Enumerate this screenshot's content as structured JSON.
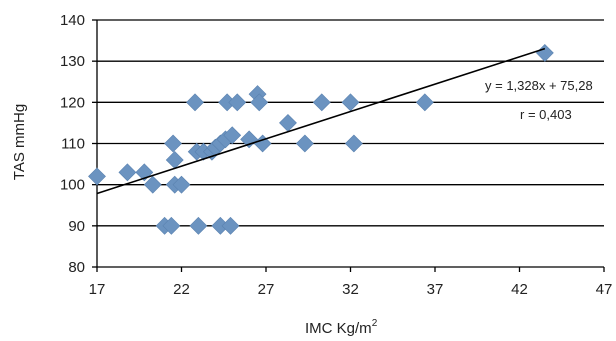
{
  "chart_data": {
    "type": "scatter",
    "title": "",
    "xlabel": "IMC Kg/m",
    "xlabel_superscript": "2",
    "ylabel": "TAS mmHg",
    "xlim": [
      17,
      47
    ],
    "ylim": [
      80,
      140
    ],
    "x_ticks": [
      "17",
      "22",
      "27",
      "32",
      "37",
      "42",
      "47"
    ],
    "y_ticks": [
      "80",
      "90",
      "100",
      "110",
      "120",
      "130",
      "140"
    ],
    "grid": "horizontal",
    "legend": "none",
    "marker_color": "#6b93c0",
    "trendline": {
      "slope": 1.328,
      "intercept": 75.28,
      "x_start": 17,
      "x_end": 43.5
    },
    "annotations": {
      "equation": "y = 1,328x + 75,28",
      "r": "r = 0,403"
    },
    "points": [
      {
        "x": 17.0,
        "y": 102
      },
      {
        "x": 18.8,
        "y": 103
      },
      {
        "x": 19.8,
        "y": 103
      },
      {
        "x": 20.3,
        "y": 100
      },
      {
        "x": 21.0,
        "y": 90
      },
      {
        "x": 21.4,
        "y": 90
      },
      {
        "x": 21.5,
        "y": 110
      },
      {
        "x": 21.6,
        "y": 106
      },
      {
        "x": 21.6,
        "y": 100
      },
      {
        "x": 22.0,
        "y": 100
      },
      {
        "x": 22.8,
        "y": 120
      },
      {
        "x": 22.9,
        "y": 108
      },
      {
        "x": 23.0,
        "y": 90
      },
      {
        "x": 23.3,
        "y": 108
      },
      {
        "x": 23.8,
        "y": 108
      },
      {
        "x": 24.0,
        "y": 109
      },
      {
        "x": 24.3,
        "y": 110
      },
      {
        "x": 24.3,
        "y": 90
      },
      {
        "x": 24.6,
        "y": 111
      },
      {
        "x": 24.7,
        "y": 120
      },
      {
        "x": 24.9,
        "y": 90
      },
      {
        "x": 25.0,
        "y": 112
      },
      {
        "x": 25.3,
        "y": 120
      },
      {
        "x": 26.0,
        "y": 111
      },
      {
        "x": 26.5,
        "y": 122
      },
      {
        "x": 26.6,
        "y": 120
      },
      {
        "x": 26.8,
        "y": 110
      },
      {
        "x": 28.3,
        "y": 115
      },
      {
        "x": 29.3,
        "y": 110
      },
      {
        "x": 30.3,
        "y": 120
      },
      {
        "x": 32.0,
        "y": 120
      },
      {
        "x": 32.2,
        "y": 110
      },
      {
        "x": 36.4,
        "y": 120
      },
      {
        "x": 43.5,
        "y": 132
      }
    ]
  }
}
